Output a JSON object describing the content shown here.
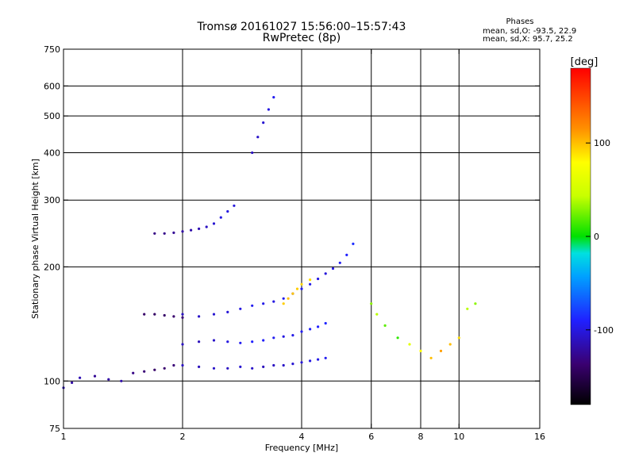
{
  "title_line1": "Tromsø 20161027 15:56:00–15:57:43",
  "title_line2": "RwPretec (8p)",
  "stats": {
    "heading": "Phases",
    "o_line": "mean, sd,O: -93.5, 22.9",
    "x_line": "mean, sd,X:  95.7, 25.2"
  },
  "colorbar": {
    "label": "[deg]",
    "ticks": [
      {
        "value": 100,
        "label": "100"
      },
      {
        "value": 0,
        "label": "0"
      },
      {
        "value": -100,
        "label": "-100"
      }
    ],
    "range": [
      -180,
      180
    ]
  },
  "chart_data": {
    "type": "scatter",
    "xlabel": "Frequency [MHz]",
    "ylabel": "Stationary phase Virtual Height [km]",
    "xscale": "log",
    "yscale": "log",
    "xlim": [
      1,
      16
    ],
    "ylim": [
      75,
      750
    ],
    "xticks": [
      1,
      2,
      4,
      6,
      8,
      10,
      16
    ],
    "xtick_labels": [
      "1",
      "2",
      "4",
      "6",
      "8",
      "10",
      "16"
    ],
    "yticks": [
      75,
      100,
      200,
      300,
      400,
      500,
      600,
      750
    ],
    "ytick_labels": [
      "75",
      "100",
      "200",
      "300",
      "400",
      "500",
      "600",
      "750"
    ],
    "x_gridlines": [
      2,
      4,
      6,
      8,
      10
    ],
    "y_gridlines": [
      100,
      200,
      300,
      400,
      500,
      600
    ],
    "color_encoding": "phase [deg]",
    "traces": [
      {
        "name": "O-mode ground trace low",
        "points": [
          [
            1.0,
            96,
            -110
          ],
          [
            1.05,
            99,
            -120
          ],
          [
            1.1,
            102,
            -115
          ],
          [
            1.2,
            103,
            -125
          ],
          [
            1.3,
            101,
            -120
          ],
          [
            1.4,
            100,
            -118
          ],
          [
            1.5,
            105,
            -130
          ],
          [
            1.6,
            106,
            -135
          ],
          [
            1.7,
            107,
            -140
          ],
          [
            1.8,
            108,
            -138
          ],
          [
            1.9,
            110,
            -135
          ]
        ]
      },
      {
        "name": "O-mode E trace",
        "points": [
          [
            2.0,
            110,
            -110
          ],
          [
            2.2,
            109,
            -112
          ],
          [
            2.4,
            108,
            -108
          ],
          [
            2.6,
            108,
            -110
          ],
          [
            2.8,
            109,
            -105
          ],
          [
            3.0,
            108,
            -108
          ],
          [
            3.2,
            109,
            -112
          ],
          [
            3.4,
            110,
            -110
          ],
          [
            3.6,
            110,
            -108
          ],
          [
            3.8,
            111,
            -105
          ],
          [
            4.0,
            112,
            -103
          ],
          [
            4.2,
            113,
            -100
          ],
          [
            4.4,
            114,
            -98
          ],
          [
            4.6,
            115,
            -95
          ]
        ]
      },
      {
        "name": "O-mode F1 trace",
        "points": [
          [
            2.0,
            125,
            -110
          ],
          [
            2.2,
            127,
            -112
          ],
          [
            2.4,
            128,
            -108
          ],
          [
            2.6,
            127,
            -100
          ],
          [
            2.8,
            126,
            -95
          ],
          [
            3.0,
            127,
            -90
          ],
          [
            3.2,
            128,
            -92
          ],
          [
            3.4,
            130,
            -95
          ],
          [
            3.6,
            131,
            -100
          ],
          [
            3.8,
            132,
            -98
          ],
          [
            4.0,
            135,
            -95
          ],
          [
            4.2,
            137,
            -92
          ],
          [
            4.4,
            139,
            -90
          ],
          [
            4.6,
            142,
            -88
          ]
        ]
      },
      {
        "name": "O-mode F2 trace",
        "points": [
          [
            2.0,
            150,
            -110
          ],
          [
            2.2,
            148,
            -108
          ],
          [
            2.4,
            150,
            -105
          ],
          [
            2.6,
            152,
            -103
          ],
          [
            2.8,
            155,
            -100
          ],
          [
            3.0,
            158,
            -95
          ],
          [
            3.2,
            160,
            -98
          ],
          [
            3.4,
            162,
            -100
          ],
          [
            3.6,
            165,
            -95
          ],
          [
            3.8,
            170,
            -90
          ],
          [
            4.0,
            175,
            -95
          ],
          [
            4.2,
            180,
            -98
          ],
          [
            4.4,
            186,
            -100
          ],
          [
            4.6,
            192,
            -102
          ],
          [
            4.8,
            198,
            -100
          ],
          [
            5.0,
            205,
            -95
          ],
          [
            5.2,
            215,
            -90
          ],
          [
            5.4,
            230,
            -85
          ]
        ]
      },
      {
        "name": "O-mode sporadic trace",
        "points": [
          [
            1.6,
            150,
            -140
          ],
          [
            1.7,
            150,
            -142
          ],
          [
            1.8,
            149,
            -140
          ],
          [
            1.9,
            148,
            -138
          ],
          [
            2.0,
            147,
            -135
          ]
        ]
      },
      {
        "name": "upper F trace",
        "points": [
          [
            1.7,
            245,
            -130
          ],
          [
            1.8,
            245,
            -128
          ],
          [
            1.9,
            246,
            -125
          ],
          [
            2.0,
            248,
            -120
          ],
          [
            2.1,
            250,
            -118
          ],
          [
            2.2,
            252,
            -115
          ],
          [
            2.3,
            255,
            -110
          ],
          [
            2.4,
            260,
            -105
          ],
          [
            2.5,
            270,
            -100
          ],
          [
            2.6,
            280,
            -100
          ],
          [
            2.7,
            290,
            -102
          ]
        ]
      },
      {
        "name": "multi-hop trace",
        "points": [
          [
            3.0,
            400,
            -110
          ],
          [
            3.1,
            440,
            -108
          ],
          [
            3.2,
            480,
            -105
          ],
          [
            3.3,
            520,
            -100
          ],
          [
            3.4,
            560,
            -95
          ]
        ]
      },
      {
        "name": "X-mode trace",
        "points": [
          [
            3.6,
            160,
            95
          ],
          [
            3.7,
            165,
            100
          ],
          [
            3.8,
            170,
            98
          ],
          [
            3.9,
            175,
            95
          ],
          [
            4.0,
            180,
            92
          ],
          [
            4.2,
            185,
            90
          ]
        ]
      },
      {
        "name": "scattered mid echoes",
        "points": [
          [
            6.0,
            160,
            30
          ],
          [
            6.2,
            150,
            40
          ],
          [
            6.5,
            140,
            20
          ],
          [
            7.0,
            130,
            10
          ],
          [
            7.5,
            125,
            60
          ],
          [
            8.0,
            120,
            80
          ],
          [
            8.5,
            115,
            100
          ],
          [
            9.0,
            120,
            110
          ],
          [
            9.5,
            125,
            100
          ],
          [
            10.0,
            130,
            90
          ],
          [
            10.5,
            155,
            40
          ],
          [
            11.0,
            160,
            30
          ]
        ]
      }
    ]
  }
}
